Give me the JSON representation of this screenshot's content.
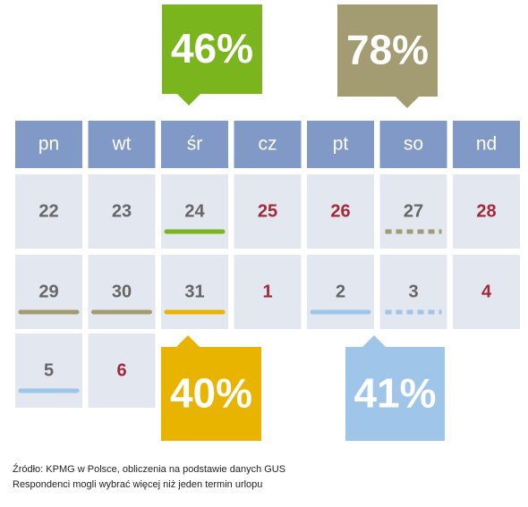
{
  "callouts": [
    {
      "label": "46%"
    },
    {
      "label": "78%"
    },
    {
      "label": "40%"
    },
    {
      "label": "41%"
    }
  ],
  "weekdays": [
    "pn",
    "wt",
    "śr",
    "cz",
    "pt",
    "so",
    "nd"
  ],
  "weeks": [
    [
      22,
      23,
      24,
      25,
      26,
      27,
      28
    ],
    [
      29,
      30,
      31,
      1,
      2,
      3,
      4
    ],
    [
      5,
      6
    ]
  ],
  "footer": {
    "source": "Źródło: KPMG w Polsce, obliczenia na podstawie danych GUS",
    "note": "Respondenci mogli wybrać więcej niż jeden termin urlopu"
  }
}
